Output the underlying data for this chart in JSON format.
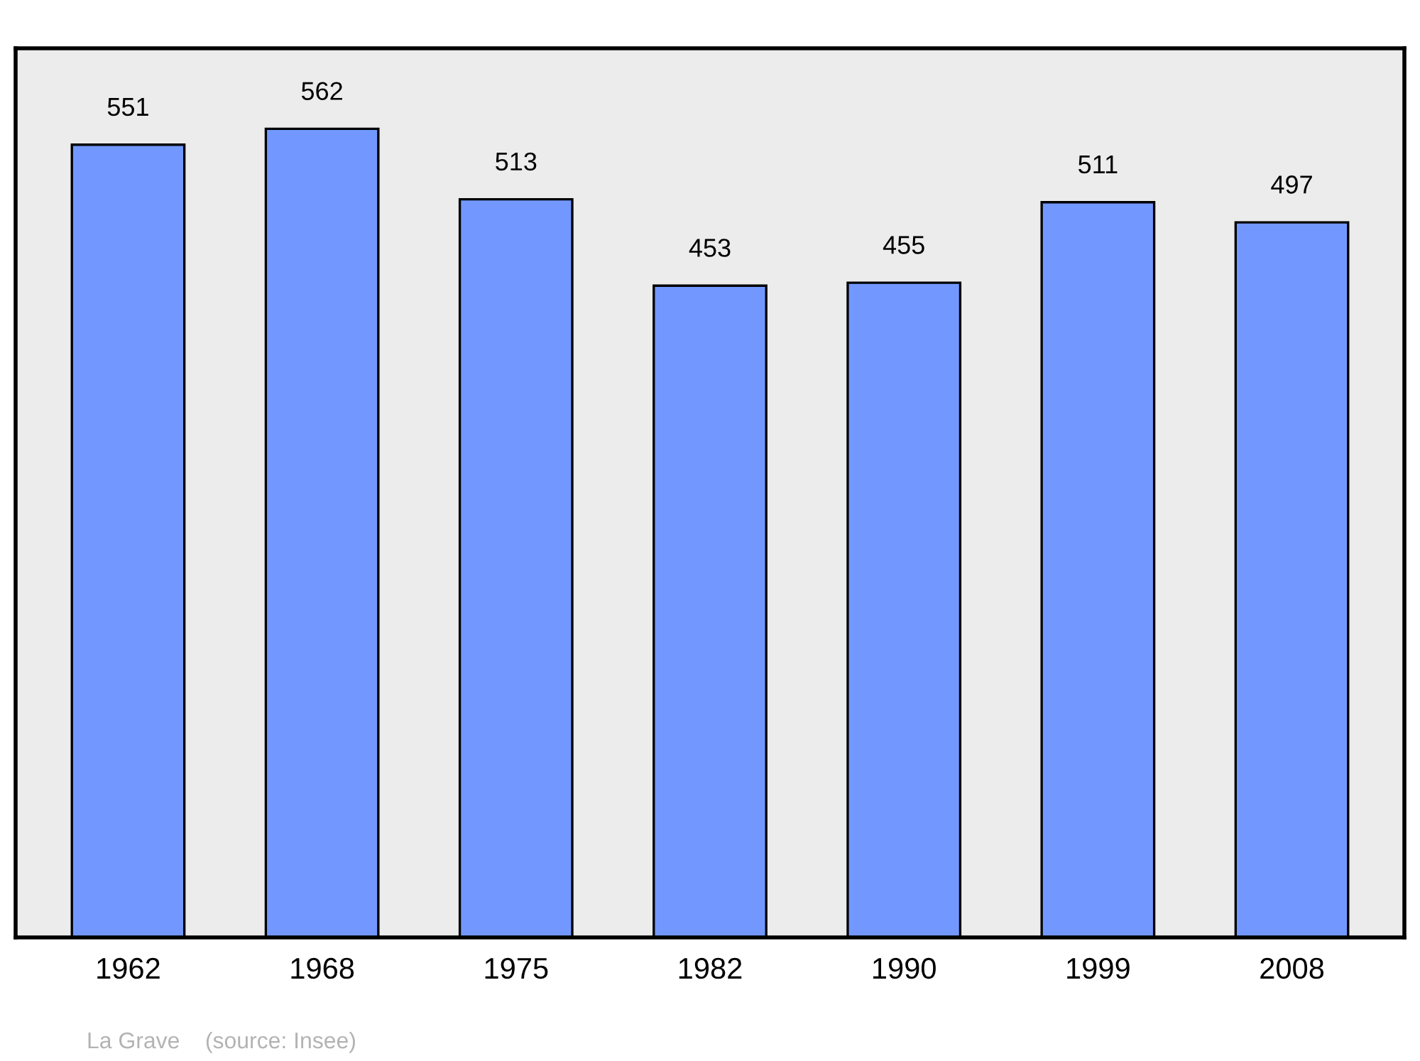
{
  "chart_data": {
    "type": "bar",
    "categories": [
      "1962",
      "1968",
      "1975",
      "1982",
      "1990",
      "1999",
      "2008"
    ],
    "values": [
      551,
      562,
      513,
      453,
      455,
      511,
      497
    ],
    "color": "#7298ff",
    "ylim": [
      0,
      618
    ],
    "data_labels": true,
    "grid": false,
    "legend": false,
    "tick_labels": "x",
    "annotations": [
      "La Grave    (source: Insee)"
    ]
  }
}
